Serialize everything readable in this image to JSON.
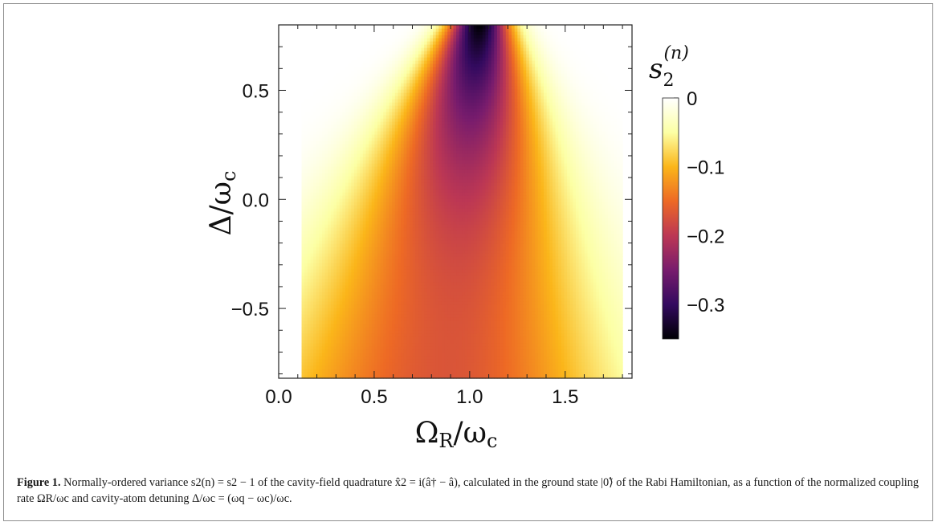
{
  "chart_data": {
    "type": "heatmap",
    "xlabel": "ΩR/ωc",
    "ylabel": "Δ/ωc",
    "colorbar_title": "s2(n)",
    "xlim": [
      0.0,
      1.85
    ],
    "ylim": [
      -0.82,
      0.8
    ],
    "x_ticks": [
      "0.0",
      "0.5",
      "1.0",
      "1.5"
    ],
    "x_tick_values": [
      0.0,
      0.5,
      1.0,
      1.5
    ],
    "y_ticks": [
      "−0.5",
      "0.0",
      "0.5"
    ],
    "y_tick_values": [
      -0.5,
      0.0,
      0.5
    ],
    "colorbar_range": [
      -0.35,
      0.0
    ],
    "colorbar_ticks": [
      "0",
      "−0.1",
      "−0.2",
      "−0.3"
    ],
    "colorbar_tick_values": [
      0.0,
      -0.1,
      -0.2,
      -0.3
    ],
    "colormap": [
      "#000004",
      "#330a5f",
      "#781c6d",
      "#bc3754",
      "#ed6925",
      "#fbb61a",
      "#fcffa4",
      "#ffffff"
    ],
    "data_extent_x": [
      0.12,
      1.8
    ],
    "minimum": {
      "x": 1.05,
      "y": 0.8,
      "value": -0.35
    }
  },
  "caption": {
    "label": "Figure 1.",
    "text": "Normally-ordered variance s2(n) = s2 − 1 of the cavity-field quadrature x̂2 = i(â† − â), calculated in the ground state |0̃⟩ of the Rabi Hamiltonian, as a function of the normalized coupling rate ΩR/ωc and cavity-atom detuning Δ/ωc = (ωq − ωc)/ωc."
  }
}
